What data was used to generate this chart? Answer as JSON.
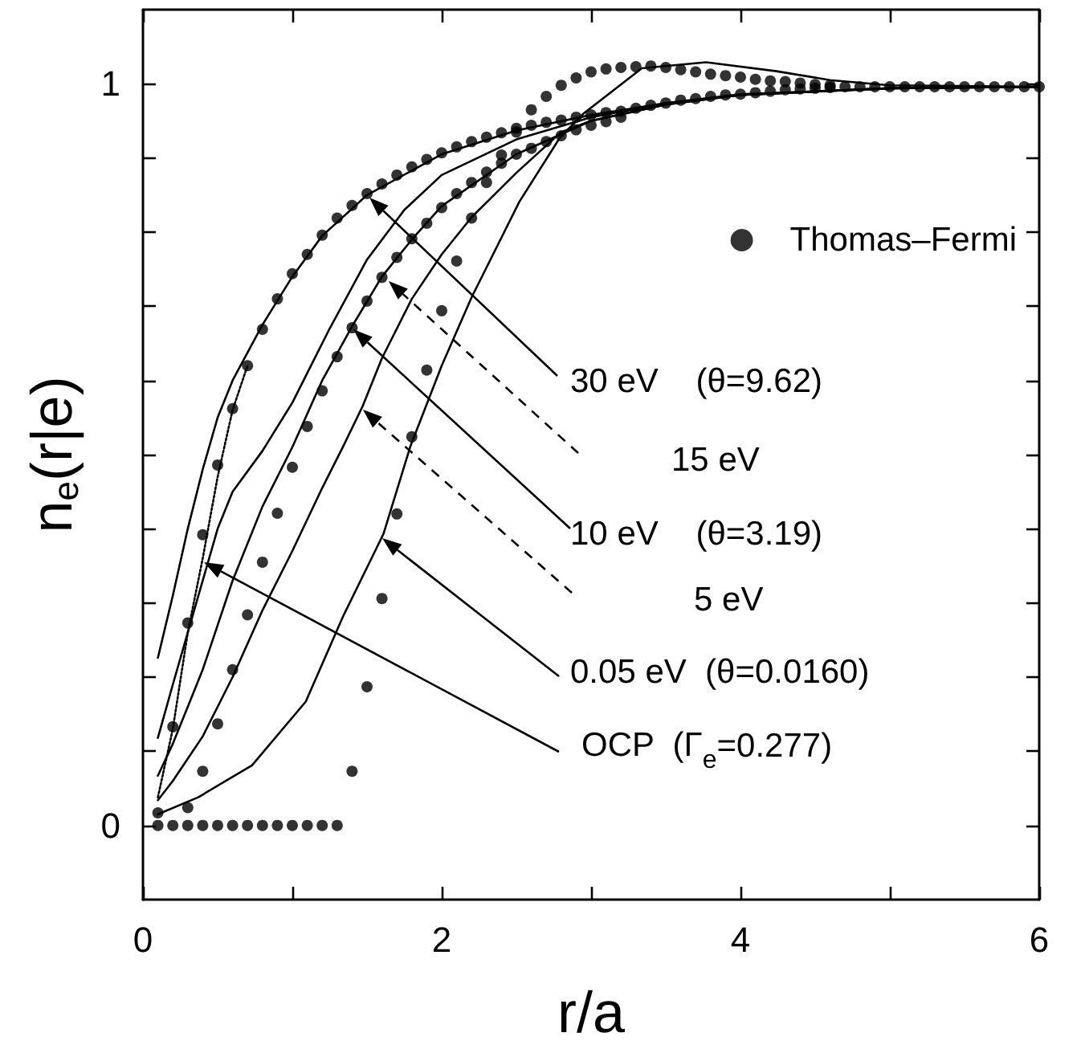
{
  "chart_data": {
    "type": "line",
    "xlabel": "r/a",
    "ylabel": "n$_{e}$(r|e)",
    "xlim": [
      0,
      6
    ],
    "xticks": [
      0,
      {
        "value": 1,
        "label": null
      },
      2,
      {
        "value": 3,
        "label": null
      },
      4,
      {
        "value": 5,
        "label": null
      },
      6
    ],
    "ylim": [
      -0.1,
      1.1
    ],
    "yticks": [
      0,
      {
        "value": 0.1,
        "label": null
      },
      {
        "value": 0.2,
        "label": null
      },
      {
        "value": 0.3,
        "label": null
      },
      {
        "value": 0.4,
        "label": null
      },
      {
        "value": 0.5,
        "label": null
      },
      {
        "value": 0.6,
        "label": null
      },
      {
        "value": 0.7,
        "label": null
      },
      {
        "value": 0.8,
        "label": null
      },
      {
        "value": 0.9,
        "label": null
      },
      1
    ],
    "legend": "right",
    "series": [
      {
        "type": "scatter",
        "name": "Thomas–Fermi",
        "color": "#000000",
        "marker": "circle",
        "x": [
          0.2,
          0.3,
          0.4,
          0.5,
          0.6,
          0.7,
          0.8,
          0.9,
          1.0,
          1.1,
          1.2,
          1.3,
          1.4,
          1.5,
          1.6,
          1.7,
          1.8,
          1.9,
          2.0,
          2.1,
          2.2,
          2.3,
          2.4,
          2.5,
          2.6,
          2.7,
          2.8,
          2.9,
          3.0,
          3.1,
          3.2,
          3.3,
          3.4,
          3.5,
          3.6,
          3.7,
          3.8,
          3.9,
          4.0,
          4.1,
          4.2,
          4.3,
          4.4,
          4.5,
          4.6,
          4.7,
          4.8,
          4.9,
          5.0,
          5.1,
          5.2,
          5.3,
          5.4,
          5.5,
          5.6,
          5.7,
          5.8,
          5.9,
          6.0,
          0.1,
          0.3,
          0.4,
          0.5,
          0.6,
          0.7,
          0.8,
          0.9,
          1.0,
          1.1,
          1.2,
          1.3,
          1.4,
          1.5,
          1.6,
          1.7,
          1.8,
          1.9,
          2.0,
          2.1,
          2.2,
          2.3,
          2.4,
          2.5,
          2.6,
          2.7,
          2.8,
          2.9,
          3.0,
          3.1,
          3.2,
          0.1,
          0.2,
          0.3,
          0.4,
          0.5,
          0.6,
          0.7,
          0.8,
          0.9,
          1.0,
          1.1,
          1.2,
          1.3,
          1.4,
          1.5,
          1.6,
          1.7,
          1.8,
          1.9,
          2.0,
          2.1,
          2.2,
          2.3,
          2.4,
          2.5,
          2.6,
          2.7,
          2.8,
          2.9,
          3.0,
          3.1,
          3.2,
          3.3,
          3.4,
          3.5,
          3.6,
          3.7,
          3.8,
          3.9,
          4.0,
          4.1,
          4.2,
          4.3,
          4.4,
          4.5,
          4.6
        ],
        "values": [
          0.133,
          0.273,
          0.392,
          0.486,
          0.562,
          0.62,
          0.669,
          0.71,
          0.744,
          0.77,
          0.796,
          0.819,
          0.836,
          0.852,
          0.865,
          0.877,
          0.888,
          0.898,
          0.907,
          0.915,
          0.922,
          0.928,
          0.934,
          0.94,
          0.944,
          0.948,
          0.951,
          0.955,
          0.958,
          0.961,
          0.963,
          0.967,
          0.971,
          0.974,
          0.978,
          0.98,
          0.983,
          0.985,
          0.986,
          0.988,
          0.99,
          0.992,
          0.993,
          0.994,
          0.995,
          0.996,
          0.996,
          0.996,
          0.996,
          0.996,
          0.996,
          0.996,
          0.996,
          0.996,
          0.996,
          0.996,
          0.996,
          0.996,
          0.996,
          0.017,
          0.024,
          0.073,
          0.137,
          0.21,
          0.284,
          0.355,
          0.421,
          0.483,
          0.538,
          0.586,
          0.632,
          0.671,
          0.707,
          0.739,
          0.766,
          0.791,
          0.812,
          0.833,
          0.852,
          0.867,
          0.881,
          0.893,
          0.905,
          0.913,
          0.922,
          0.93,
          0.938,
          0.944,
          0.949,
          0.955,
          0,
          0,
          0,
          0,
          0,
          0,
          0,
          0,
          0,
          0,
          0,
          0,
          0,
          0.073,
          0.187,
          0.306,
          0.42,
          0.524,
          0.614,
          0.694,
          0.761,
          0.819,
          0.867,
          0.904,
          0.935,
          0.965,
          0.983,
          0.998,
          1.008,
          1.016,
          1.02,
          1.022,
          1.023,
          1.024,
          1.022,
          1.019,
          1.016,
          1.013,
          1.011,
          1.009,
          1.006,
          1.004,
          1.003,
          1.001,
          0.999,
          0.998
        ]
      },
      {
        "color": "#000000",
        "marker": "none",
        "line_style": "solid",
        "x": [
          0.1,
          0.2,
          0.3,
          0.4,
          0.5,
          0.6,
          0.8,
          1.0,
          1.2,
          1.5,
          2.0,
          2.5,
          3.0,
          3.5,
          4.0,
          5.0,
          6.0
        ],
        "values": [
          0.226,
          0.31,
          0.4,
          0.48,
          0.55,
          0.6,
          0.675,
          0.74,
          0.795,
          0.85,
          0.905,
          0.937,
          0.958,
          0.974,
          0.986,
          0.994,
          0.996
        ]
      },
      {
        "color": "#000000",
        "marker": "none",
        "line_style": "solid",
        "x": [
          0.1,
          0.2,
          0.3,
          0.4,
          0.5,
          0.6,
          0.8,
          1.0,
          1.25,
          1.5,
          1.75,
          2.0,
          2.5,
          3.0,
          3.5,
          4.0,
          5.0,
          6.0
        ],
        "values": [
          0.118,
          0.19,
          0.26,
          0.33,
          0.4,
          0.45,
          0.505,
          0.57,
          0.67,
          0.763,
          0.83,
          0.877,
          0.925,
          0.955,
          0.973,
          0.985,
          0.994,
          0.996
        ]
      },
      {
        "color": "#000000",
        "marker": "none",
        "line_style": "solid",
        "x": [
          0.1,
          0.2,
          0.3,
          0.4,
          0.5,
          0.6,
          0.8,
          1.0,
          1.2,
          1.4,
          1.6,
          1.8,
          2.0,
          2.5,
          3.0,
          3.5,
          4.0,
          5.0,
          6.0
        ],
        "values": [
          0.067,
          0.11,
          0.16,
          0.21,
          0.27,
          0.33,
          0.43,
          0.51,
          0.6,
          0.673,
          0.74,
          0.79,
          0.835,
          0.905,
          0.95,
          0.972,
          0.985,
          0.994,
          0.996
        ]
      },
      {
        "color": "#000000",
        "marker": "none",
        "line_style": "solid",
        "x": [
          0.1,
          0.2,
          0.4,
          0.6,
          0.8,
          1.0,
          1.2,
          1.34,
          1.47,
          1.6,
          1.8,
          2.0,
          2.2,
          2.5,
          2.8,
          3.0,
          3.5,
          4.0,
          5.0,
          6.0
        ],
        "values": [
          0.034,
          0.06,
          0.12,
          0.2,
          0.29,
          0.37,
          0.455,
          0.511,
          0.565,
          0.63,
          0.71,
          0.77,
          0.82,
          0.88,
          0.935,
          0.95,
          0.972,
          0.985,
          0.994,
          0.996
        ]
      },
      {
        "color": "#000000",
        "marker": "none",
        "line_style": "solid",
        "x": [
          0.1,
          0.37,
          0.73,
          1.09,
          1.34,
          1.61,
          1.79,
          2.0,
          2.2,
          2.52,
          2.79,
          2.95,
          3.34,
          3.77,
          4.24,
          4.6,
          5.0,
          6.0
        ],
        "values": [
          0.015,
          0.038,
          0.081,
          0.167,
          0.282,
          0.393,
          0.511,
          0.62,
          0.712,
          0.841,
          0.927,
          0.96,
          1.021,
          1.029,
          1.017,
          1.005,
          0.998,
          0.996
        ]
      },
      {
        "color": "#000000",
        "marker": "none",
        "line_style": "dotted",
        "x": [
          0.1,
          0.2,
          0.3,
          0.4,
          0.5,
          0.6,
          0.7
        ],
        "values": [
          0.038,
          0.13,
          0.26,
          0.36,
          0.47,
          0.56,
          0.62
        ]
      }
    ],
    "annotations": [
      "30 eV    (θ=9.62)",
      "15 eV",
      "10 eV    (θ=3.19)",
      "5 eV",
      "0.05 eV  (θ=0.0160)",
      "OCP  (Γ$_{e}$=0.277)"
    ]
  }
}
